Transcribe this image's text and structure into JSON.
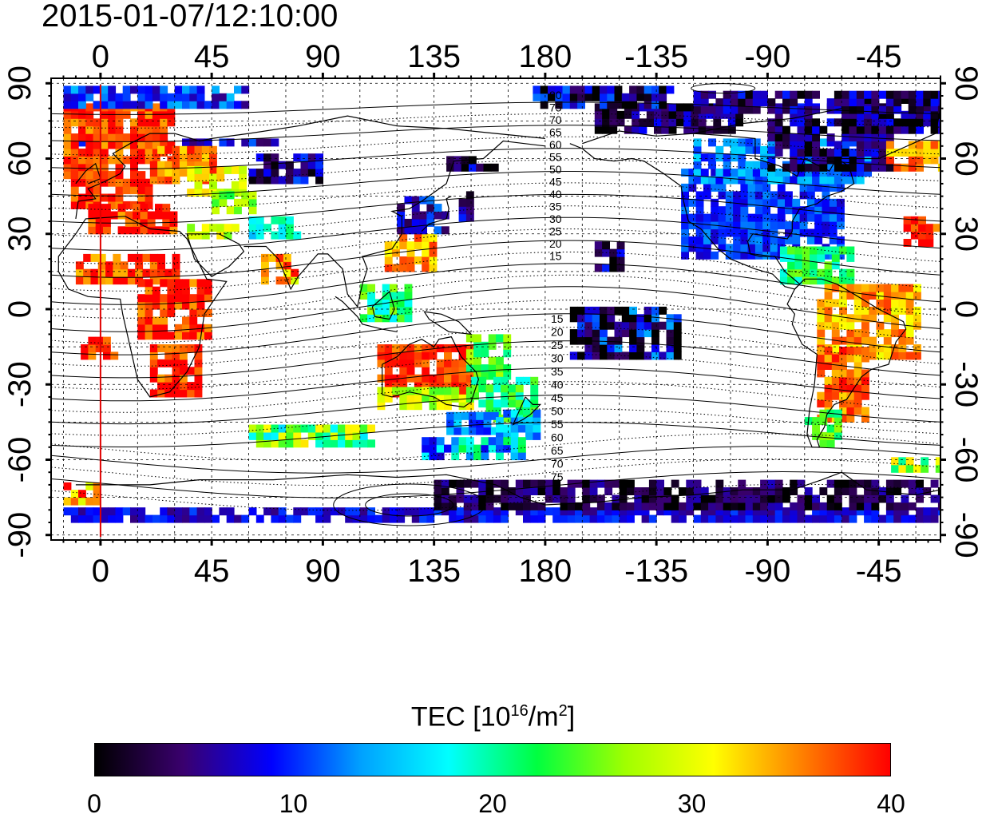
{
  "title": "2015-01-07/12:10:00",
  "map": {
    "lon_ticks_top": [
      "0",
      "45",
      "90",
      "135",
      "180",
      "-135",
      "-90",
      "-45"
    ],
    "lon_ticks_bottom": [
      "0",
      "45",
      "90",
      "135",
      "180",
      "-135",
      "-90",
      "-45"
    ],
    "lat_ticks_left": [
      "90",
      "60",
      "30",
      "0",
      "-30",
      "-60",
      "-90"
    ],
    "lat_ticks_right": [
      "90",
      "60",
      "30",
      "0",
      "-30",
      "-60",
      "-90"
    ],
    "lon_range": [
      -20,
      340
    ],
    "lat_range": [
      -92,
      92
    ],
    "terminator_lon": 0,
    "terminator_color": "#e00000",
    "contour_labels_north": [
      "80",
      "75",
      "70",
      "65",
      "60",
      "55",
      "50",
      "45",
      "40",
      "35",
      "30",
      "25",
      "20",
      "15"
    ],
    "contour_labels_south": [
      "15",
      "20",
      "25",
      "30",
      "35",
      "40",
      "45",
      "50",
      "55",
      "60",
      "65",
      "70",
      "75"
    ]
  },
  "colorbar": {
    "title_main": "TEC  [10",
    "title_sup1": "16",
    "title_mid": "/m",
    "title_sup2": "2",
    "title_end": "]",
    "min": 0,
    "max": 40,
    "tick_labels": [
      "0",
      "10",
      "20",
      "30",
      "40"
    ],
    "stops": [
      "#000000",
      "#3a006e",
      "#0000ff",
      "#00a0ff",
      "#00ffff",
      "#00ff40",
      "#a0ff00",
      "#ffff00",
      "#ff8000",
      "#ff0000"
    ]
  }
}
